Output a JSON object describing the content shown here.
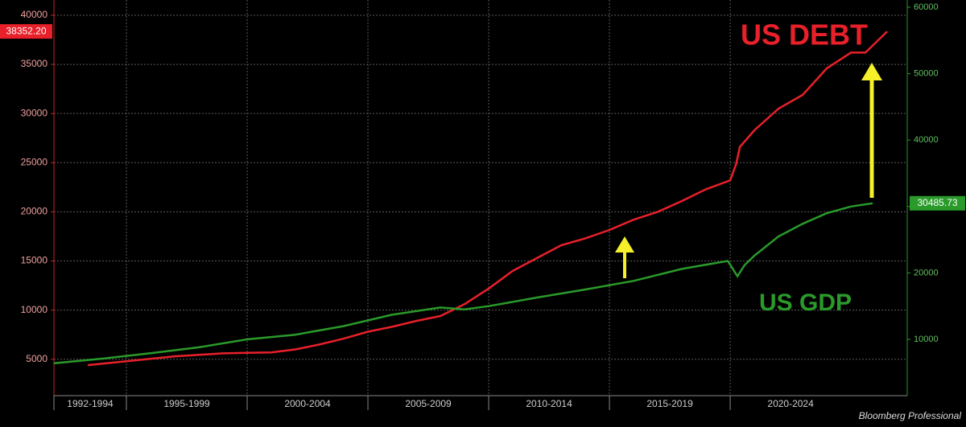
{
  "chart_data": {
    "type": "line",
    "annotations": [
      "US DEBT",
      "US GDP"
    ],
    "source": "Bloomberg Professional",
    "xlim": [
      1992,
      2027.33
    ],
    "xticks": [
      {
        "value": 1992,
        "label": "1992-1994"
      },
      {
        "value": 1995,
        "label": "1995-1999"
      },
      {
        "value": 2000,
        "label": "2000-2004"
      },
      {
        "value": 2005,
        "label": "2005-2009"
      },
      {
        "value": 2010,
        "label": "2010-2014"
      },
      {
        "value": 2015,
        "label": "2015-2019"
      },
      {
        "value": 2020,
        "label": "2020-2024"
      }
    ],
    "ylim": [
      1300,
      41550
    ],
    "yticks": [
      5000,
      10000,
      15000,
      20000,
      25000,
      30000,
      35000,
      40000
    ],
    "y2lim": [
      1525,
      61090
    ],
    "y2ticks": [
      10000,
      20000,
      30000,
      40000,
      50000,
      60000
    ],
    "grid": true,
    "series": [
      {
        "name": "US DEBT",
        "color": "#e8202a",
        "axis": "y",
        "x": [
          1993.4,
          1995,
          1997,
          1999,
          2000,
          2001,
          2002,
          2003,
          2004,
          2005,
          2006,
          2007,
          2008,
          2009,
          2010,
          2011,
          2012,
          2013,
          2014,
          2015,
          2016,
          2017,
          2018,
          2019,
          2020,
          2020.25,
          2020.4,
          2021,
          2022,
          2023,
          2024,
          2025,
          2025.6,
          2026.5
        ],
        "values": [
          4400,
          4800,
          5300,
          5600,
          5650,
          5700,
          6000,
          6500,
          7100,
          7800,
          8300,
          8900,
          9400,
          10600,
          12200,
          14000,
          15300,
          16600,
          17300,
          18150,
          19200,
          20000,
          21100,
          22300,
          23200,
          24900,
          26600,
          28300,
          30500,
          31900,
          34600,
          36200,
          36200,
          38352.2
        ],
        "value_labels": [
          null,
          null,
          null,
          null,
          null,
          null,
          null,
          null,
          null,
          null,
          null,
          null,
          null,
          null,
          null,
          null,
          null,
          null,
          null,
          null,
          null,
          null,
          null,
          null,
          null,
          null,
          null,
          null,
          null,
          null,
          null,
          null,
          null,
          "38352.20"
        ]
      },
      {
        "name": "US GDP",
        "color": "#2a9a2a",
        "axis": "y2",
        "x": [
          1992,
          1994,
          1996,
          1998,
          2000,
          2002,
          2004,
          2006,
          2008,
          2009,
          2010,
          2012,
          2014,
          2016,
          2018,
          2019.9,
          2020.3,
          2020.6,
          2021,
          2022,
          2023,
          2024,
          2025,
          2025.9
        ],
        "values": [
          6400,
          7100,
          7900,
          8800,
          10000,
          10700,
          12000,
          13700,
          14800,
          14500,
          15000,
          16300,
          17500,
          18800,
          20600,
          21800,
          19500,
          21200,
          22600,
          25500,
          27400,
          29000,
          30000,
          30485.73
        ],
        "value_labels": [
          null,
          null,
          null,
          null,
          null,
          null,
          null,
          null,
          null,
          null,
          null,
          null,
          null,
          null,
          null,
          null,
          null,
          null,
          null,
          null,
          null,
          null,
          null,
          "30485.73"
        ]
      }
    ]
  }
}
